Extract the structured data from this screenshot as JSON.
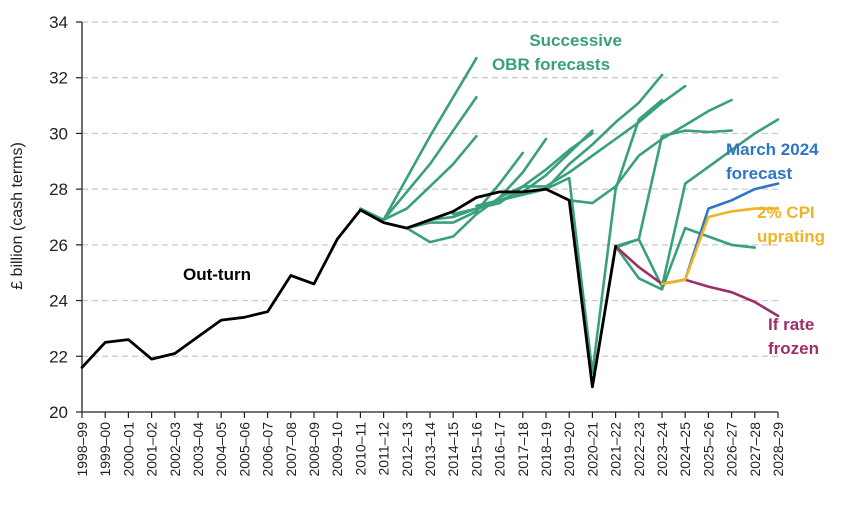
{
  "chart_data": {
    "type": "line",
    "ylabel": "£ billion (cash terms)",
    "ylim": [
      20,
      34
    ],
    "yticks": [
      20,
      22,
      24,
      26,
      28,
      30,
      32,
      34
    ],
    "categories": [
      "1998–99",
      "1999–00",
      "2000–01",
      "2001–02",
      "2002–03",
      "2003–04",
      "2004–05",
      "2005–06",
      "2006–07",
      "2007–08",
      "2008–09",
      "2009–10",
      "2010–11",
      "2011–12",
      "2012–13",
      "2013–14",
      "2014–15",
      "2015–16",
      "2016–17",
      "2017–18",
      "2018–19",
      "2019–20",
      "2020–21",
      "2021–22",
      "2022–23",
      "2023–24",
      "2024–25",
      "2025–26",
      "2026–27",
      "2027–28",
      "2028–29"
    ],
    "grid": true,
    "colors": {
      "outturn": "#000000",
      "forecasts": "#3aa07a",
      "march2024": "#2e75c8",
      "cpi": "#f0b323",
      "frozen": "#9b2f6a"
    },
    "annotations": {
      "forecasts": [
        "Successive",
        "OBR forecasts"
      ],
      "outturn": "Out-turn",
      "march2024": [
        "March 2024",
        "forecast"
      ],
      "cpi": [
        "2% CPI",
        "uprating"
      ],
      "frozen": [
        "If rate",
        "frozen"
      ]
    },
    "outturn": {
      "start": 0,
      "values": [
        21.6,
        22.5,
        22.6,
        21.9,
        22.1,
        22.7,
        23.3,
        23.4,
        23.6,
        24.9,
        24.6,
        26.2,
        27.25,
        26.8,
        26.6,
        26.9,
        27.2,
        27.7,
        27.9,
        27.9,
        28.0,
        27.6,
        20.9,
        25.95
      ]
    },
    "forecasts": [
      {
        "start": 12,
        "values": [
          27.3,
          26.9,
          28.4,
          29.9,
          31.3,
          32.7
        ]
      },
      {
        "start": 13,
        "values": [
          26.9,
          27.9,
          28.9,
          30.1,
          31.3
        ]
      },
      {
        "start": 13,
        "values": [
          26.9,
          27.3,
          28.1,
          28.9,
          29.9
        ]
      },
      {
        "start": 14,
        "values": [
          26.6,
          26.8,
          26.8,
          27.2,
          28.2,
          29.3
        ]
      },
      {
        "start": 14,
        "values": [
          26.6,
          26.1,
          26.3,
          27.1,
          27.7,
          28.6,
          29.8
        ]
      },
      {
        "start": 15,
        "values": [
          26.9,
          27.0,
          27.3,
          27.6,
          27.9,
          28.5,
          29.3,
          30.1
        ]
      },
      {
        "start": 16,
        "values": [
          27.1,
          27.3,
          27.5,
          28.1,
          28.7,
          29.4,
          30.0
        ]
      },
      {
        "start": 17,
        "values": [
          27.4,
          27.6,
          27.8,
          28.0,
          28.9,
          29.6,
          30.4,
          31.1,
          32.1
        ]
      },
      {
        "start": 18,
        "values": [
          27.7,
          28.1,
          28.1,
          28.6,
          29.2,
          29.8,
          30.4,
          31.1,
          31.7
        ]
      },
      {
        "start": 20,
        "values": [
          28.0,
          28.4,
          21.4,
          28.0,
          30.5,
          31.2
        ]
      },
      {
        "start": 21,
        "values": [
          27.6,
          27.5,
          28.1,
          29.2,
          29.8,
          30.3,
          30.8,
          31.2
        ]
      },
      {
        "start": 22,
        "values": [
          20.9,
          25.9,
          26.2,
          29.9,
          30.1,
          30.05,
          30.1
        ]
      },
      {
        "start": 23,
        "values": [
          25.95,
          26.2,
          24.5,
          28.2,
          28.8,
          29.4,
          30.0,
          30.5
        ]
      },
      {
        "start": 23,
        "values": [
          25.95,
          24.8,
          24.4,
          26.6,
          26.3,
          26.0,
          25.9
        ]
      }
    ],
    "march2024": {
      "start": 26,
      "values": [
        24.75,
        27.3,
        27.6,
        28.0,
        28.2
      ]
    },
    "cpi_uprating": {
      "start": 25,
      "values": [
        24.6,
        24.75,
        27.0,
        27.2,
        27.3,
        27.3
      ]
    },
    "rate_frozen": {
      "start": 23,
      "values": [
        25.95,
        25.2,
        24.6,
        24.75,
        24.5,
        24.3,
        23.95,
        23.45
      ]
    }
  }
}
